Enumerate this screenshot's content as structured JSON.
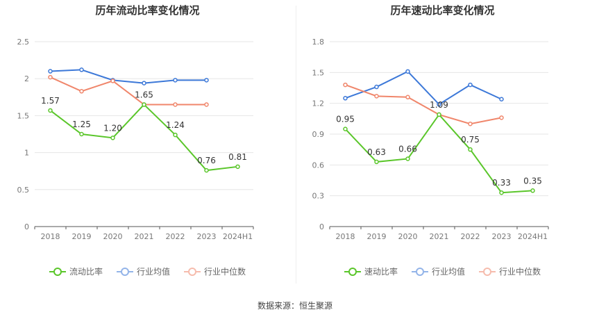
{
  "colors": {
    "main": "#5ac62a",
    "avg": "#3c78d8",
    "median": "#f0866b"
  },
  "source": "数据来源：恒生聚源",
  "chart_data": [
    {
      "type": "line",
      "title": "历年流动比率变化情况",
      "categories": [
        "2018",
        "2019",
        "2020",
        "2021",
        "2022",
        "2023",
        "2024H1"
      ],
      "ylim": [
        0,
        2.5
      ],
      "yticks": [
        0,
        0.5,
        1,
        1.5,
        2,
        2.5
      ],
      "ytick_labels": [
        "0",
        "0.5",
        "1",
        "1.5",
        "2",
        "2.5"
      ],
      "series": [
        {
          "name": "流动比率",
          "key": "main",
          "values": [
            1.57,
            1.25,
            1.2,
            1.65,
            1.24,
            0.76,
            0.81
          ],
          "labels": [
            "1.57",
            "1.25",
            "1.20",
            "1.65",
            "1.24",
            "0.76",
            "0.81"
          ]
        },
        {
          "name": "行业均值",
          "key": "avg",
          "values": [
            2.1,
            2.12,
            1.98,
            1.94,
            1.98,
            1.98,
            null
          ]
        },
        {
          "name": "行业中位数",
          "key": "median",
          "values": [
            2.02,
            1.83,
            1.97,
            1.65,
            1.65,
            1.65,
            null
          ]
        }
      ]
    },
    {
      "type": "line",
      "title": "历年速动比率变化情况",
      "categories": [
        "2018",
        "2019",
        "2020",
        "2021",
        "2022",
        "2023",
        "2024H1"
      ],
      "ylim": [
        0,
        1.8
      ],
      "yticks": [
        0,
        0.3,
        0.6,
        0.9,
        1.2,
        1.5,
        1.8
      ],
      "ytick_labels": [
        "0",
        "0.3",
        "0.6",
        "0.9",
        "1.2",
        "1.5",
        "1.8"
      ],
      "series": [
        {
          "name": "速动比率",
          "key": "main",
          "values": [
            0.95,
            0.63,
            0.66,
            1.09,
            0.75,
            0.33,
            0.35
          ],
          "labels": [
            "0.95",
            "0.63",
            "0.66",
            "1.09",
            "0.75",
            "0.33",
            "0.35"
          ]
        },
        {
          "name": "行业均值",
          "key": "avg",
          "values": [
            1.25,
            1.36,
            1.51,
            1.19,
            1.38,
            1.24,
            null
          ]
        },
        {
          "name": "行业中位数",
          "key": "median",
          "values": [
            1.38,
            1.27,
            1.26,
            1.09,
            1.0,
            1.06,
            null
          ]
        }
      ]
    }
  ]
}
